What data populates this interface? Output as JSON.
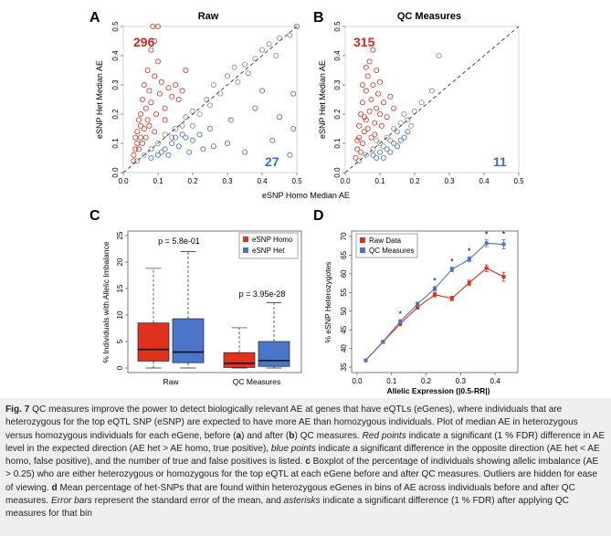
{
  "panels": {
    "A": {
      "letter": "A",
      "title": "Raw",
      "count_red": "296",
      "count_blue": "27"
    },
    "B": {
      "letter": "B",
      "title": "QC Measures",
      "count_red": "315",
      "count_blue": "11"
    },
    "C": {
      "letter": "C"
    },
    "D": {
      "letter": "D"
    }
  },
  "scatter_axes": {
    "xlabel": "eSNP Homo Median AE",
    "ylabel": "eSNP Het Median AE",
    "ticks": [
      "0.0",
      "0.1",
      "0.2",
      "0.3",
      "0.4",
      "0.5"
    ]
  },
  "chart_data": [
    {
      "type": "scatter",
      "title": "Raw",
      "xlabel": "eSNP Homo Median AE",
      "ylabel": "eSNP Het Median AE",
      "xlim": [
        0,
        0.5
      ],
      "ylim": [
        0,
        0.5
      ],
      "reference_line": "y = x (dashed)",
      "annotations": [
        "296",
        "27"
      ],
      "series": [
        {
          "color": "#e0301e",
          "points": [
            [
              0.03,
              0.04
            ],
            [
              0.03,
              0.06
            ],
            [
              0.035,
              0.08
            ],
            [
              0.04,
              0.1
            ],
            [
              0.04,
              0.14
            ],
            [
              0.045,
              0.18
            ],
            [
              0.05,
              0.12
            ],
            [
              0.05,
              0.2
            ],
            [
              0.055,
              0.25
            ],
            [
              0.06,
              0.15
            ],
            [
              0.06,
              0.3
            ],
            [
              0.065,
              0.22
            ],
            [
              0.07,
              0.35
            ],
            [
              0.07,
              0.18
            ],
            [
              0.075,
              0.28
            ],
            [
              0.08,
              0.42
            ],
            [
              0.08,
              0.24
            ],
            [
              0.085,
              0.5
            ],
            [
              0.09,
              0.33
            ],
            [
              0.09,
              0.45
            ],
            [
              0.095,
              0.2
            ],
            [
              0.1,
              0.38
            ],
            [
              0.1,
              0.5
            ],
            [
              0.105,
              0.27
            ],
            [
              0.11,
              0.31
            ],
            [
              0.12,
              0.22
            ],
            [
              0.13,
              0.29
            ],
            [
              0.14,
              0.26
            ],
            [
              0.15,
              0.3
            ],
            [
              0.16,
              0.25
            ],
            [
              0.17,
              0.28
            ],
            [
              0.18,
              0.35
            ],
            [
              0.055,
              0.1
            ],
            [
              0.045,
              0.08
            ],
            [
              0.065,
              0.12
            ],
            [
              0.035,
              0.12
            ],
            [
              0.05,
              0.16
            ],
            [
              0.075,
              0.16
            ],
            [
              0.09,
              0.14
            ],
            [
              0.12,
              0.18
            ]
          ]
        },
        {
          "color": "#8a8a8a",
          "points": [
            [
              0.04,
              0.04
            ],
            [
              0.06,
              0.06
            ],
            [
              0.08,
              0.08
            ],
            [
              0.1,
              0.1
            ],
            [
              0.12,
              0.13
            ],
            [
              0.15,
              0.15
            ],
            [
              0.18,
              0.19
            ],
            [
              0.2,
              0.21
            ],
            [
              0.22,
              0.2
            ],
            [
              0.25,
              0.23
            ],
            [
              0.28,
              0.27
            ],
            [
              0.3,
              0.33
            ],
            [
              0.33,
              0.31
            ],
            [
              0.35,
              0.37
            ],
            [
              0.38,
              0.39
            ],
            [
              0.4,
              0.42
            ],
            [
              0.42,
              0.44
            ],
            [
              0.45,
              0.46
            ],
            [
              0.48,
              0.47
            ],
            [
              0.26,
              0.3
            ],
            [
              0.32,
              0.36
            ],
            [
              0.2,
              0.16
            ],
            [
              0.24,
              0.25
            ],
            [
              0.36,
              0.34
            ],
            [
              0.14,
              0.12
            ],
            [
              0.17,
              0.16
            ],
            [
              0.44,
              0.4
            ]
          ]
        },
        {
          "color": "#3a6fc9",
          "points": [
            [
              0.08,
              0.05
            ],
            [
              0.1,
              0.06
            ],
            [
              0.12,
              0.08
            ],
            [
              0.14,
              0.1
            ],
            [
              0.16,
              0.09
            ],
            [
              0.18,
              0.12
            ],
            [
              0.2,
              0.11
            ],
            [
              0.25,
              0.15
            ],
            [
              0.3,
              0.1
            ],
            [
              0.35,
              0.07
            ],
            [
              0.5,
              0.5
            ],
            [
              0.49,
              0.27
            ],
            [
              0.49,
              0.15
            ],
            [
              0.48,
              0.06
            ],
            [
              0.4,
              0.28
            ],
            [
              0.22,
              0.13
            ],
            [
              0.11,
              0.07
            ],
            [
              0.13,
              0.06
            ],
            [
              0.15,
              0.12
            ],
            [
              0.26,
              0.09
            ],
            [
              0.38,
              0.22
            ],
            [
              0.43,
              0.11
            ],
            [
              0.31,
              0.18
            ],
            [
              0.19,
              0.07
            ],
            [
              0.17,
              0.13
            ],
            [
              0.45,
              0.19
            ],
            [
              0.23,
              0.08
            ]
          ]
        }
      ]
    },
    {
      "type": "scatter",
      "title": "QC Measures",
      "xlabel": "eSNP Homo Median AE",
      "ylabel": "eSNP Het Median AE",
      "xlim": [
        0,
        0.5
      ],
      "ylim": [
        0,
        0.5
      ],
      "reference_line": "y = x (dashed)",
      "annotations": [
        "315",
        "11"
      ],
      "series": [
        {
          "color": "#e0301e",
          "points": [
            [
              0.03,
              0.05
            ],
            [
              0.035,
              0.08
            ],
            [
              0.04,
              0.12
            ],
            [
              0.04,
              0.16
            ],
            [
              0.045,
              0.2
            ],
            [
              0.05,
              0.1
            ],
            [
              0.05,
              0.24
            ],
            [
              0.055,
              0.14
            ],
            [
              0.06,
              0.28
            ],
            [
              0.06,
              0.18
            ],
            [
              0.065,
              0.33
            ],
            [
              0.07,
              0.21
            ],
            [
              0.07,
              0.38
            ],
            [
              0.075,
              0.25
            ],
            [
              0.08,
              0.42
            ],
            [
              0.08,
              0.3
            ],
            [
              0.085,
              0.17
            ],
            [
              0.09,
              0.35
            ],
            [
              0.09,
              0.22
            ],
            [
              0.095,
              0.27
            ],
            [
              0.1,
              0.2
            ],
            [
              0.1,
              0.31
            ],
            [
              0.11,
              0.24
            ],
            [
              0.12,
              0.19
            ],
            [
              0.13,
              0.26
            ],
            [
              0.14,
              0.22
            ],
            [
              0.035,
              0.11
            ],
            [
              0.045,
              0.07
            ],
            [
              0.055,
              0.19
            ],
            [
              0.065,
              0.15
            ],
            [
              0.075,
              0.12
            ],
            [
              0.085,
              0.13
            ],
            [
              0.105,
              0.16
            ],
            [
              0.05,
              0.3
            ],
            [
              0.06,
              0.36
            ]
          ]
        },
        {
          "color": "#8a8a8a",
          "points": [
            [
              0.04,
              0.04
            ],
            [
              0.06,
              0.06
            ],
            [
              0.08,
              0.08
            ],
            [
              0.1,
              0.1
            ],
            [
              0.12,
              0.12
            ],
            [
              0.14,
              0.15
            ],
            [
              0.16,
              0.17
            ],
            [
              0.18,
              0.18
            ],
            [
              0.2,
              0.21
            ],
            [
              0.22,
              0.24
            ],
            [
              0.25,
              0.28
            ],
            [
              0.27,
              0.4
            ],
            [
              0.13,
              0.11
            ],
            [
              0.15,
              0.14
            ],
            [
              0.17,
              0.2
            ],
            [
              0.09,
              0.11
            ],
            [
              0.11,
              0.09
            ],
            [
              0.19,
              0.16
            ]
          ]
        },
        {
          "color": "#3a6fc9",
          "points": [
            [
              0.08,
              0.06
            ],
            [
              0.1,
              0.07
            ],
            [
              0.12,
              0.08
            ],
            [
              0.14,
              0.1
            ],
            [
              0.16,
              0.11
            ],
            [
              0.18,
              0.14
            ],
            [
              0.11,
              0.05
            ],
            [
              0.13,
              0.07
            ],
            [
              0.15,
              0.09
            ],
            [
              0.09,
              0.05
            ],
            [
              0.17,
              0.12
            ]
          ]
        }
      ]
    },
    {
      "type": "box",
      "ylabel": "% Individuals with Allelic Imbalance",
      "ylim": [
        0,
        25
      ],
      "yticks": [
        0,
        5,
        10,
        15,
        20,
        25
      ],
      "categories": [
        "Raw",
        "QC Measures"
      ],
      "legend": {
        "placement": "top-right",
        "entries": [
          "eSNP Homo",
          "eSNP Het"
        ]
      },
      "annotations": [
        "p = 5.8e-01",
        "p = 3.95e-28"
      ],
      "series": [
        {
          "name": "eSNP Homo",
          "color": "#e0301e",
          "boxes": [
            {
              "category": "Raw",
              "whisker_low": 0,
              "q1": 1.3,
              "median": 3.5,
              "q3": 8.5,
              "whisker_high": 18.8
            },
            {
              "category": "QC Measures",
              "whisker_low": 0,
              "q1": 0.1,
              "median": 0.9,
              "q3": 2.9,
              "whisker_high": 7.6
            }
          ]
        },
        {
          "name": "eSNP Het",
          "color": "#4a75c8",
          "boxes": [
            {
              "category": "Raw",
              "whisker_low": 0,
              "q1": 1.0,
              "median": 3.0,
              "q3": 9.3,
              "whisker_high": 22.0
            },
            {
              "category": "QC Measures",
              "whisker_low": 0,
              "q1": 0.3,
              "median": 1.4,
              "q3": 5.0,
              "whisker_high": 12.3
            }
          ]
        }
      ]
    },
    {
      "type": "line",
      "xlabel": "Allelic Expression (|0.5-RR|)",
      "ylabel": "% eSNP Heterozygotes",
      "xlim": [
        0,
        0.45
      ],
      "ylim": [
        35,
        70
      ],
      "xticks": [
        "0.0",
        "0.1",
        "0.2",
        "0.3",
        "0.4"
      ],
      "yticks": [
        35,
        40,
        45,
        50,
        55,
        60,
        65,
        70
      ],
      "legend": {
        "placement": "top-left",
        "entries": [
          "Raw Data",
          "QC Measures"
        ]
      },
      "x": [
        0.025,
        0.075,
        0.125,
        0.175,
        0.225,
        0.275,
        0.325,
        0.375,
        0.425
      ],
      "significant_marker": "*",
      "significant": [
        false,
        false,
        true,
        false,
        true,
        true,
        true,
        true,
        true
      ],
      "series": [
        {
          "name": "Raw Data",
          "color": "#e0301e",
          "values": [
            36.8,
            41.7,
            46.6,
            51.0,
            54.4,
            53.4,
            57.6,
            61.5,
            59.2
          ],
          "errors": [
            0.3,
            0.3,
            0.5,
            0.5,
            0.6,
            0.6,
            0.7,
            0.9,
            1.2
          ]
        },
        {
          "name": "QC Measures",
          "color": "#4a75c8",
          "values": [
            36.8,
            41.8,
            47.2,
            51.9,
            56.0,
            61.2,
            63.9,
            68.2,
            67.9
          ],
          "errors": [
            0.3,
            0.3,
            0.5,
            0.5,
            0.6,
            0.6,
            0.7,
            0.9,
            1.2
          ]
        }
      ]
    }
  ],
  "caption": {
    "fig_label": "Fig. 7",
    "s1": " QC measures improve the power to detect biologically relevant AE at genes that have eQTLs (eGenes), where individuals that are heterozygous for the top eQTL SNP (eSNP) are expected to have more AE than homozygous individuals. Plot of median AE in heterozygous versus homozygous individuals for each eGene, before (",
    "a": "a",
    "s2": ") and after (",
    "b": "b",
    "s3": ") QC measures. ",
    "red_points": "Red points",
    "s4": " indicate a significant (1 % FDR) difference in AE level in the expected direction (AE het > AE homo, true positive), ",
    "blue_points": "blue points",
    "s5": " indicate a significant difference in the opposite direction (AE het < AE homo, false positive), and the number of true and false positives is listed. ",
    "c": "c",
    "s6": " Boxplot of the percentage of individuals showing allelic imbalance (AE > 0.25) who are either heterozygous or homozygous for the top eQTL at each eGene before and after QC measures. Outliers are hidden for ease of viewing. ",
    "d": "d",
    "s7": " Mean percentage of het-SNPs that are found within heterozygous eGenes in bins of AE across individuals before and after QC measures. ",
    "error_bars": "Error bars",
    "s8": " represent the standard error of the mean, and ",
    "asterisks": "asterisks",
    "s9": " indicate a significant difference (1 % FDR) after applying QC measures for that bin"
  }
}
